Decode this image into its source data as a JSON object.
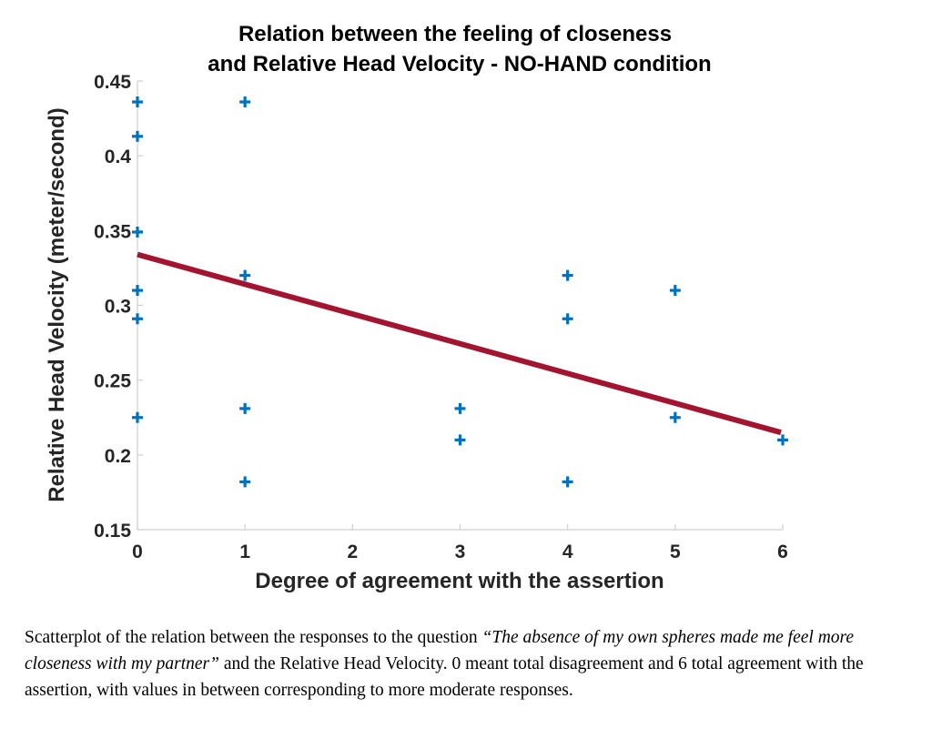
{
  "chart_data": {
    "type": "scatter",
    "title": [
      "Relation between the feeling of closeness",
      "and Relative Head Velocity  - NO-HAND condition"
    ],
    "xlabel": "Degree of agreement with the assertion",
    "ylabel": "Relative Head Velocity (meter/second)",
    "xlim": [
      0,
      6
    ],
    "ylim": [
      0.15,
      0.45
    ],
    "xticks": [
      0,
      1,
      2,
      3,
      4,
      5,
      6
    ],
    "xtick_labels": [
      "0",
      "1",
      "2",
      "3",
      "4",
      "5",
      "6"
    ],
    "yticks": [
      0.15,
      0.2,
      0.25,
      0.3,
      0.35,
      0.4,
      0.45
    ],
    "ytick_labels": [
      "0.15",
      "0.2",
      "0.25",
      "0.3",
      "0.35",
      "0.4",
      "0.45"
    ],
    "grid": false,
    "series": [
      {
        "name": "responses",
        "marker": "plus",
        "color": "#0072BD",
        "points": [
          [
            0,
            0.436
          ],
          [
            0,
            0.413
          ],
          [
            0,
            0.349
          ],
          [
            0,
            0.31
          ],
          [
            0,
            0.291
          ],
          [
            0,
            0.225
          ],
          [
            1,
            0.436
          ],
          [
            1,
            0.32
          ],
          [
            1,
            0.231
          ],
          [
            1,
            0.182
          ],
          [
            3,
            0.231
          ],
          [
            3,
            0.21
          ],
          [
            4,
            0.32
          ],
          [
            4,
            0.291
          ],
          [
            4,
            0.182
          ],
          [
            5,
            0.31
          ],
          [
            5,
            0.225
          ],
          [
            6,
            0.21
          ]
        ]
      },
      {
        "name": "linear fit",
        "type": "line",
        "color": "#A2142F",
        "points": [
          [
            0,
            0.334
          ],
          [
            6,
            0.215
          ]
        ]
      }
    ]
  },
  "caption": {
    "prefix": "Scatterplot of the relation between the responses to the question ",
    "quote": "“The absence of my own spheres made me feel more closeness with my partner”",
    "suffix": " and the Relative Head Velocity. 0 meant total disagreement and 6 total agreement with the assertion, with values in between corresponding to more moderate responses."
  }
}
